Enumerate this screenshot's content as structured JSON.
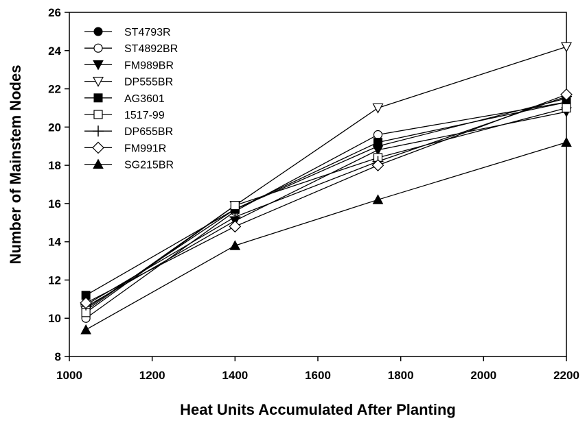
{
  "chart_data": {
    "type": "line",
    "title": "",
    "xlabel": "Heat Units Accumulated After Planting",
    "ylabel": "Number of Mainstem Nodes",
    "x": [
      1040,
      1400,
      1745,
      2200
    ],
    "xlim": [
      1000,
      2200
    ],
    "ylim": [
      8,
      26
    ],
    "xticks": [
      1000,
      1200,
      1400,
      1600,
      1800,
      2000,
      2200
    ],
    "yticks": [
      8,
      10,
      12,
      14,
      16,
      18,
      20,
      22,
      24,
      26
    ],
    "grid": false,
    "legend_position": "top-left",
    "series": [
      {
        "name": "ST4793R",
        "marker": "circle-filled",
        "values": [
          10.5,
          15.7,
          19.0,
          21.5
        ]
      },
      {
        "name": "ST4892BR",
        "marker": "circle-open",
        "values": [
          10.0,
          15.6,
          19.6,
          21.3
        ]
      },
      {
        "name": "FM989BR",
        "marker": "triangle-down-filled",
        "values": [
          10.6,
          15.1,
          18.8,
          20.8
        ]
      },
      {
        "name": "DP555BR",
        "marker": "triangle-down-open",
        "values": [
          10.4,
          15.9,
          21.0,
          24.2
        ]
      },
      {
        "name": "AG3601",
        "marker": "square-filled",
        "values": [
          11.2,
          15.7,
          19.2,
          21.3
        ]
      },
      {
        "name": "1517-99",
        "marker": "square-open",
        "values": [
          10.3,
          15.9,
          18.4,
          21.0
        ]
      },
      {
        "name": "DP655BR",
        "marker": "plus",
        "values": [
          10.7,
          15.3,
          18.2,
          21.6
        ]
      },
      {
        "name": "FM991R",
        "marker": "diamond-open",
        "values": [
          10.8,
          14.8,
          18.0,
          21.7
        ]
      },
      {
        "name": "SG215BR",
        "marker": "triangle-up-filled",
        "values": [
          9.4,
          13.8,
          16.2,
          19.2
        ]
      }
    ]
  }
}
